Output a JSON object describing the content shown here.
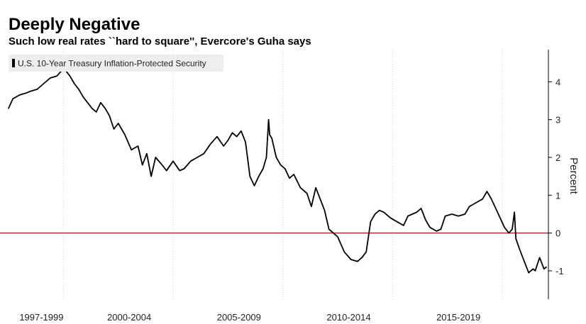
{
  "title": "Deeply Negative",
  "subtitle": "Such low real rates ``hard to square'', Evercore's Guha says",
  "colors": {
    "series": "#000000",
    "reference_line": "#e0101e",
    "grid": "#d0d0d0",
    "legend_bg": "#eeeeee"
  },
  "chart_data": {
    "type": "line",
    "title": "Deeply Negative",
    "subtitle": "Such low real rates ``hard to square'', Evercore's Guha says",
    "xlabel": "",
    "ylabel": "Percent",
    "x_range": [
      1997.0,
      2021.6
    ],
    "ylim": [
      -1.75,
      4.85
    ],
    "y_ticks": [
      -1,
      0,
      1,
      2,
      3,
      4
    ],
    "y_tick_labels": [
      "-1",
      "0",
      "1",
      "2",
      "3",
      "4"
    ],
    "x_gridlines": [
      1999.5,
      2004.5,
      2009.5,
      2014.5,
      2019.5
    ],
    "x_tick_labels": [
      {
        "label": "1997-1999",
        "pos": 1998.5
      },
      {
        "label": "2000-2004",
        "pos": 2002.5
      },
      {
        "label": "2005-2009",
        "pos": 2007.5
      },
      {
        "label": "2010-2014",
        "pos": 2012.5
      },
      {
        "label": "2015-2019",
        "pos": 2017.5
      }
    ],
    "reference_line": {
      "y": 0
    },
    "legend": {
      "label": "U.S. 10-Year Treasury Inflation-Protected Security",
      "position": "top-left"
    },
    "series": [
      {
        "name": "U.S. 10-Year Treasury Inflation-Protected Security",
        "points": [
          [
            1997.0,
            3.3
          ],
          [
            1997.2,
            3.55
          ],
          [
            1997.5,
            3.65
          ],
          [
            1997.8,
            3.7
          ],
          [
            1998.0,
            3.75
          ],
          [
            1998.3,
            3.8
          ],
          [
            1998.6,
            3.95
          ],
          [
            1998.9,
            4.1
          ],
          [
            1999.2,
            4.15
          ],
          [
            1999.4,
            4.28
          ],
          [
            1999.6,
            4.3
          ],
          [
            1999.8,
            4.15
          ],
          [
            2000.0,
            3.95
          ],
          [
            2000.2,
            3.8
          ],
          [
            2000.4,
            3.6
          ],
          [
            2000.6,
            3.45
          ],
          [
            2000.8,
            3.3
          ],
          [
            2001.0,
            3.2
          ],
          [
            2001.2,
            3.45
          ],
          [
            2001.4,
            3.3
          ],
          [
            2001.6,
            3.1
          ],
          [
            2001.8,
            2.75
          ],
          [
            2002.0,
            2.9
          ],
          [
            2002.3,
            2.6
          ],
          [
            2002.6,
            2.2
          ],
          [
            2002.9,
            2.3
          ],
          [
            2003.1,
            1.8
          ],
          [
            2003.3,
            2.1
          ],
          [
            2003.5,
            1.5
          ],
          [
            2003.7,
            2.0
          ],
          [
            2004.0,
            1.8
          ],
          [
            2004.2,
            1.65
          ],
          [
            2004.5,
            1.9
          ],
          [
            2004.8,
            1.65
          ],
          [
            2005.0,
            1.7
          ],
          [
            2005.3,
            1.9
          ],
          [
            2005.6,
            2.0
          ],
          [
            2005.9,
            2.1
          ],
          [
            2006.2,
            2.35
          ],
          [
            2006.5,
            2.55
          ],
          [
            2006.8,
            2.3
          ],
          [
            2007.0,
            2.45
          ],
          [
            2007.2,
            2.65
          ],
          [
            2007.4,
            2.55
          ],
          [
            2007.6,
            2.7
          ],
          [
            2007.8,
            2.4
          ],
          [
            2008.0,
            1.5
          ],
          [
            2008.2,
            1.25
          ],
          [
            2008.4,
            1.5
          ],
          [
            2008.6,
            1.7
          ],
          [
            2008.75,
            2.0
          ],
          [
            2008.85,
            3.0
          ],
          [
            2008.9,
            2.6
          ],
          [
            2009.0,
            2.5
          ],
          [
            2009.2,
            2.0
          ],
          [
            2009.4,
            1.8
          ],
          [
            2009.6,
            1.7
          ],
          [
            2009.8,
            1.45
          ],
          [
            2010.0,
            1.55
          ],
          [
            2010.3,
            1.2
          ],
          [
            2010.6,
            1.05
          ],
          [
            2010.8,
            0.7
          ],
          [
            2011.0,
            1.2
          ],
          [
            2011.2,
            0.9
          ],
          [
            2011.4,
            0.6
          ],
          [
            2011.6,
            0.1
          ],
          [
            2011.8,
            0.0
          ],
          [
            2012.0,
            -0.1
          ],
          [
            2012.3,
            -0.5
          ],
          [
            2012.6,
            -0.7
          ],
          [
            2012.9,
            -0.75
          ],
          [
            2013.1,
            -0.65
          ],
          [
            2013.3,
            -0.5
          ],
          [
            2013.5,
            0.3
          ],
          [
            2013.7,
            0.5
          ],
          [
            2013.9,
            0.6
          ],
          [
            2014.1,
            0.55
          ],
          [
            2014.4,
            0.4
          ],
          [
            2014.7,
            0.3
          ],
          [
            2015.0,
            0.2
          ],
          [
            2015.2,
            0.45
          ],
          [
            2015.4,
            0.5
          ],
          [
            2015.6,
            0.55
          ],
          [
            2015.8,
            0.65
          ],
          [
            2016.0,
            0.35
          ],
          [
            2016.2,
            0.15
          ],
          [
            2016.5,
            0.05
          ],
          [
            2016.7,
            0.1
          ],
          [
            2016.9,
            0.45
          ],
          [
            2017.2,
            0.5
          ],
          [
            2017.5,
            0.45
          ],
          [
            2017.8,
            0.5
          ],
          [
            2018.0,
            0.7
          ],
          [
            2018.3,
            0.8
          ],
          [
            2018.6,
            0.9
          ],
          [
            2018.8,
            1.1
          ],
          [
            2019.0,
            0.9
          ],
          [
            2019.2,
            0.65
          ],
          [
            2019.4,
            0.4
          ],
          [
            2019.6,
            0.15
          ],
          [
            2019.8,
            0.0
          ],
          [
            2019.95,
            0.1
          ],
          [
            2020.05,
            0.55
          ],
          [
            2020.12,
            -0.15
          ],
          [
            2020.3,
            -0.45
          ],
          [
            2020.5,
            -0.75
          ],
          [
            2020.7,
            -1.05
          ],
          [
            2020.9,
            -0.95
          ],
          [
            2021.0,
            -1.0
          ],
          [
            2021.2,
            -0.65
          ],
          [
            2021.4,
            -0.95
          ],
          [
            2021.5,
            -0.9
          ]
        ]
      }
    ]
  }
}
